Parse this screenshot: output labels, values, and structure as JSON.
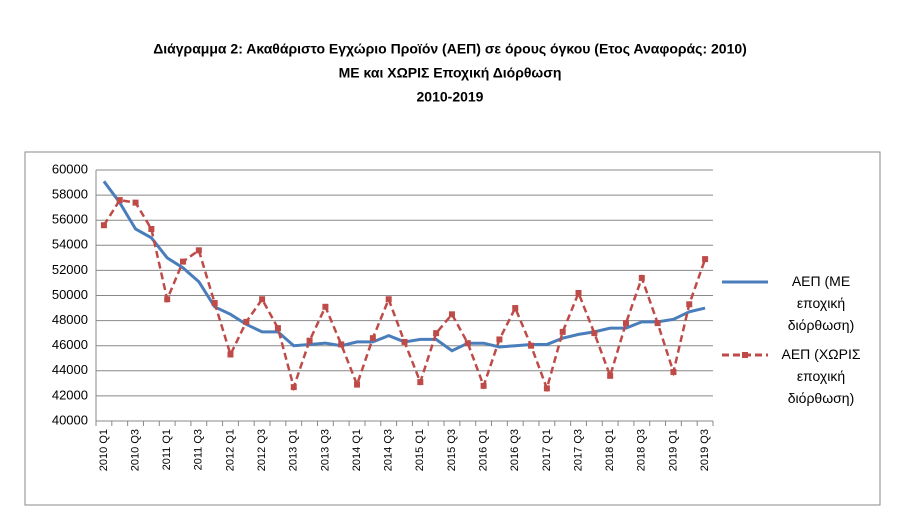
{
  "chart_data": {
    "type": "line",
    "title": [
      "Διάγραμμα 2: Ακαθάριστο Εγχώριο Προϊόν (ΑΕΠ) σε όρους όγκου (Ετος Αναφοράς: 2010)",
      "ΜΕ και ΧΩΡΙΣ Εποχική Διόρθωση",
      "2010-2019"
    ],
    "categories": [
      "2010 Q1",
      null,
      "2010 Q3",
      null,
      "2011 Q1",
      null,
      "2011 Q3",
      null,
      "2012 Q1",
      null,
      "2012 Q3",
      null,
      "2013 Q1",
      null,
      "2013 Q3",
      null,
      "2014 Q1",
      null,
      "2014 Q3",
      null,
      "2015 Q1",
      null,
      "2015 Q3",
      null,
      "2016 Q1",
      null,
      "2016 Q3",
      null,
      "2017 Q1",
      null,
      "2017 Q3",
      null,
      "2018 Q1",
      null,
      "2018 Q3",
      null,
      "2019 Q1",
      null,
      "2019 Q3"
    ],
    "series": [
      {
        "name": "ΑΕΠ (ΜΕ εποχική διόρθωση)",
        "color": "#4a7ebb",
        "values": [
          59100,
          57400,
          55300,
          54600,
          53000,
          52200,
          51100,
          49100,
          48500,
          47700,
          47100,
          47100,
          46000,
          46100,
          46200,
          46000,
          46300,
          46300,
          46800,
          46300,
          46500,
          46500,
          45600,
          46200,
          46200,
          45900,
          46000,
          46100,
          46100,
          46600,
          46900,
          47100,
          47400,
          47400,
          47900,
          47900,
          48100,
          48700,
          49000
        ]
      },
      {
        "name": "ΑΕΠ (ΧΩΡΙΣ εποχική διόρθωση)",
        "color": "#be4b48",
        "values": [
          55600,
          57600,
          57400,
          55300,
          49700,
          52700,
          53600,
          49400,
          45300,
          47900,
          49700,
          47400,
          42700,
          46400,
          49100,
          46100,
          42900,
          46600,
          49700,
          46300,
          43100,
          47000,
          48500,
          46200,
          42800,
          46500,
          49000,
          46000,
          42600,
          47100,
          50200,
          47000,
          43600,
          47800,
          51400,
          47800,
          43900,
          49300,
          52900
        ]
      }
    ],
    "ylim": [
      40000,
      60000
    ],
    "yticks": [
      40000,
      42000,
      44000,
      46000,
      48000,
      50000,
      52000,
      54000,
      56000,
      58000,
      60000
    ],
    "grid": true,
    "legend": "right"
  }
}
